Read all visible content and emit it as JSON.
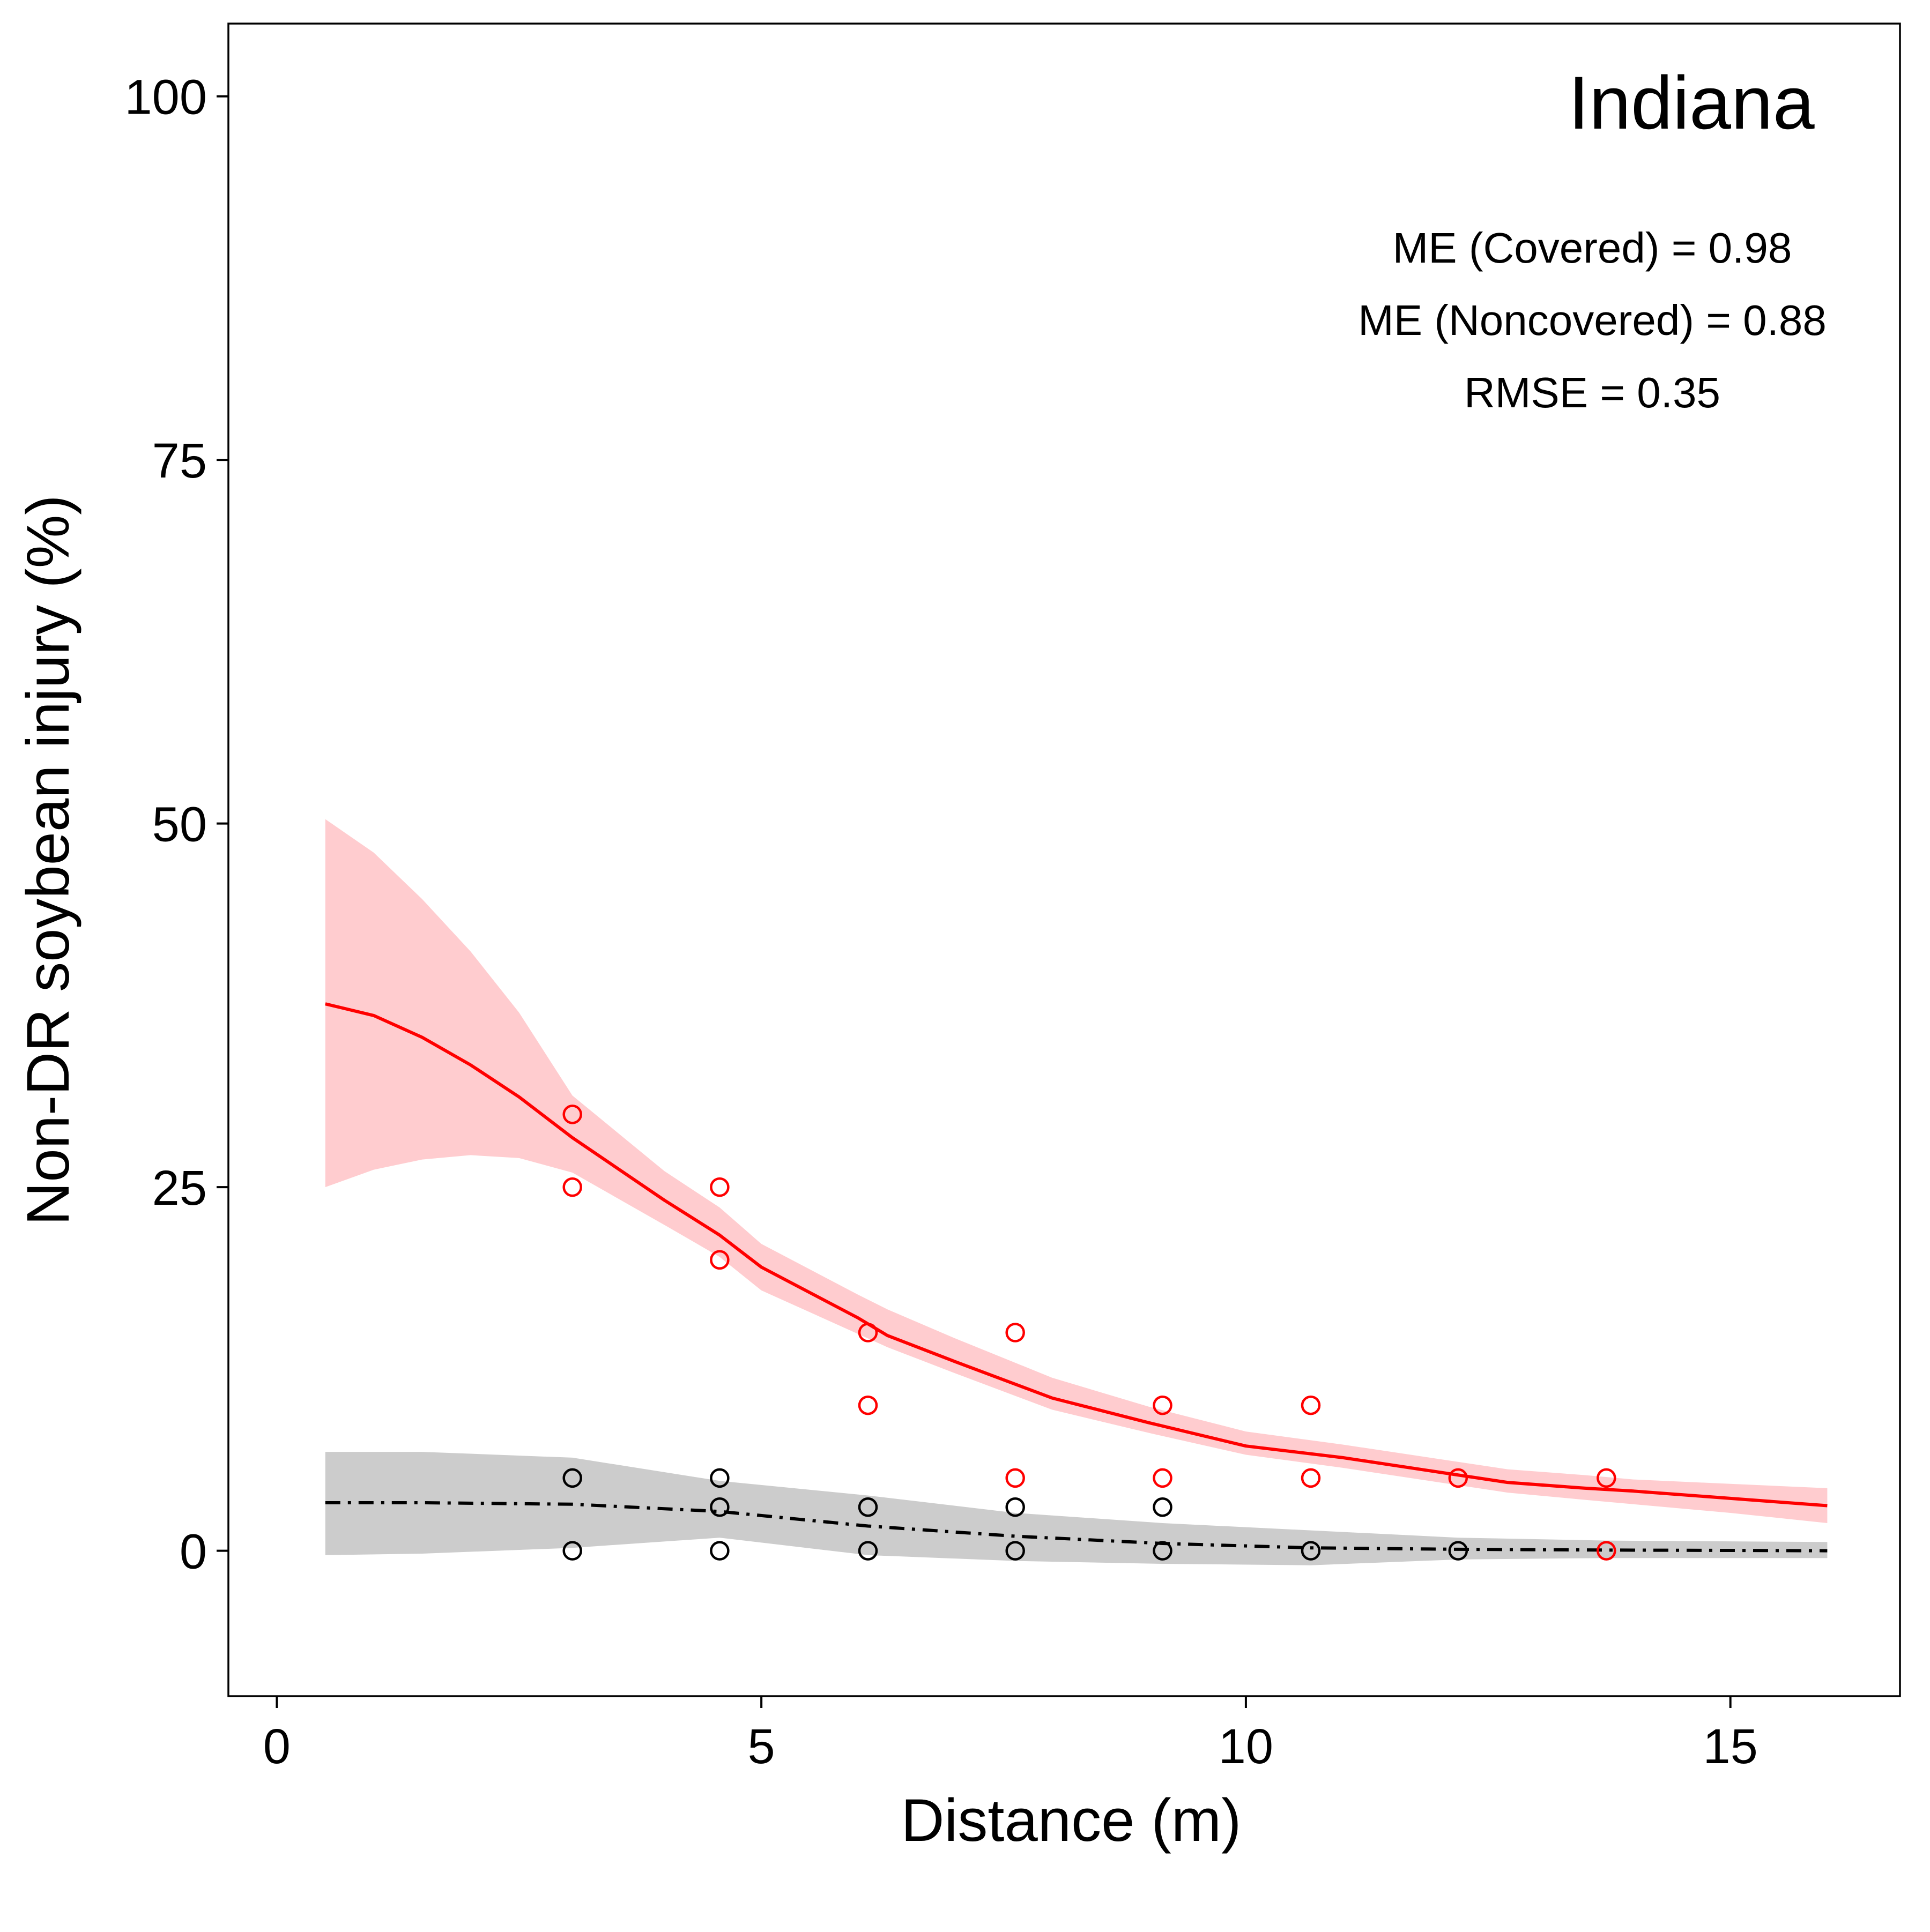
{
  "chart_data": {
    "type": "line",
    "title": "Indiana",
    "xlabel": "Distance (m)",
    "ylabel": "Non-DR soybean injury (%)",
    "xlim": [
      -0.5,
      16.75
    ],
    "ylim": [
      -10,
      105
    ],
    "x_ticks": [
      0,
      5,
      10,
      15
    ],
    "y_ticks": [
      0,
      25,
      50,
      75,
      100
    ],
    "grid": false,
    "legend": "none",
    "annotations": [
      "ME (Covered) = 0.98",
      "ME (Noncovered) = 0.88",
      "RMSE = 0.35"
    ],
    "series": [
      {
        "style": "solid",
        "color": "#ff0000",
        "band_color": "#ffcccf",
        "x": [
          0.5,
          1.0,
          1.5,
          2.0,
          2.5,
          3.05,
          4.0,
          4.57,
          5.0,
          6.0,
          6.3,
          7.0,
          8.0,
          9.0,
          10.0,
          11.0,
          12.0,
          12.7,
          13.5,
          14.0,
          15.0,
          16.0
        ],
        "y": [
          37.6,
          36.8,
          35.3,
          33.4,
          31.2,
          28.4,
          24.1,
          21.7,
          19.5,
          16.0,
          14.8,
          13.0,
          10.5,
          8.8,
          7.2,
          6.4,
          5.4,
          4.7,
          4.3,
          4.1,
          3.6,
          3.1
        ],
        "lower": [
          25.0,
          26.2,
          26.9,
          27.2,
          27.0,
          26.0,
          22.4,
          20.2,
          17.9,
          14.9,
          14.0,
          12.2,
          9.7,
          8.1,
          6.6,
          5.7,
          4.7,
          4.0,
          3.5,
          3.2,
          2.6,
          1.9
        ],
        "upper": [
          50.3,
          48.0,
          44.8,
          41.2,
          37.0,
          31.3,
          26.1,
          23.6,
          21.1,
          17.6,
          16.6,
          14.6,
          11.9,
          9.9,
          8.2,
          7.3,
          6.3,
          5.6,
          5.2,
          4.9,
          4.6,
          4.3
        ],
        "points_x": [
          3.05,
          3.05,
          4.57,
          4.57,
          6.1,
          6.1,
          7.62,
          7.62,
          9.14,
          9.14,
          10.67,
          10.67,
          12.19,
          13.72,
          13.72
        ],
        "points_y": [
          30,
          25,
          25,
          20,
          15,
          10,
          15,
          5,
          10,
          5,
          10,
          5,
          5,
          5,
          0
        ]
      },
      {
        "style": "dashdot",
        "color": "#000000",
        "band_color": "#cccccc",
        "x": [
          0.5,
          1.5,
          3.05,
          4.57,
          6.1,
          7.62,
          9.14,
          10.67,
          12.19,
          13.72,
          16.0
        ],
        "y": [
          3.3,
          3.3,
          3.2,
          2.7,
          1.7,
          1.0,
          0.5,
          0.2,
          0.1,
          0.05,
          0.0
        ],
        "lower": [
          -0.3,
          -0.2,
          0.2,
          0.9,
          -0.3,
          -0.7,
          -0.9,
          -1.0,
          -0.6,
          -0.5,
          -0.5
        ],
        "upper": [
          6.8,
          6.8,
          6.4,
          4.8,
          3.8,
          2.6,
          1.9,
          1.4,
          0.9,
          0.7,
          0.6
        ],
        "points_x": [
          3.05,
          3.05,
          4.57,
          4.57,
          4.57,
          6.1,
          6.1,
          7.62,
          7.62,
          9.14,
          9.14,
          10.67,
          12.19
        ],
        "points_y": [
          5,
          0,
          5,
          3,
          0,
          3,
          0,
          3,
          0,
          3,
          0,
          0,
          0
        ]
      }
    ]
  }
}
